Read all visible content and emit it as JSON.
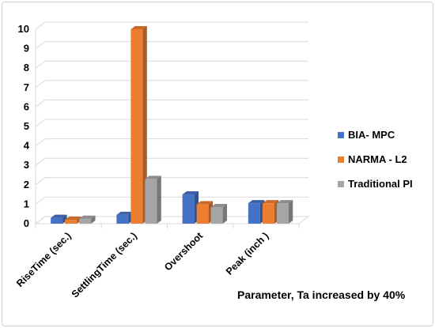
{
  "chart_data": {
    "type": "bar",
    "categories": [
      "RiseTime (sec.)",
      "SettlingTime (sec.)",
      "Overshoot",
      "Peak (inch )"
    ],
    "series": [
      {
        "name": "BIA- MPC",
        "values": [
          0.3,
          0.45,
          1.5,
          1.05
        ],
        "color": "#4472C4"
      },
      {
        "name": "NARMA - L2",
        "values": [
          0.2,
          10,
          1.0,
          1.05
        ],
        "color": "#ED7D31"
      },
      {
        "name": "Traditional PI",
        "values": [
          0.25,
          2.3,
          0.85,
          1.05
        ],
        "color": "#A5A5A5"
      }
    ],
    "ylim": [
      0,
      10
    ],
    "yticks": [
      0,
      1,
      2,
      3,
      4,
      5,
      6,
      7,
      8,
      9,
      10
    ],
    "grid": true,
    "three_d": true,
    "legend_position": "right",
    "annotation": "Parameter, Ta increased by 40%"
  }
}
